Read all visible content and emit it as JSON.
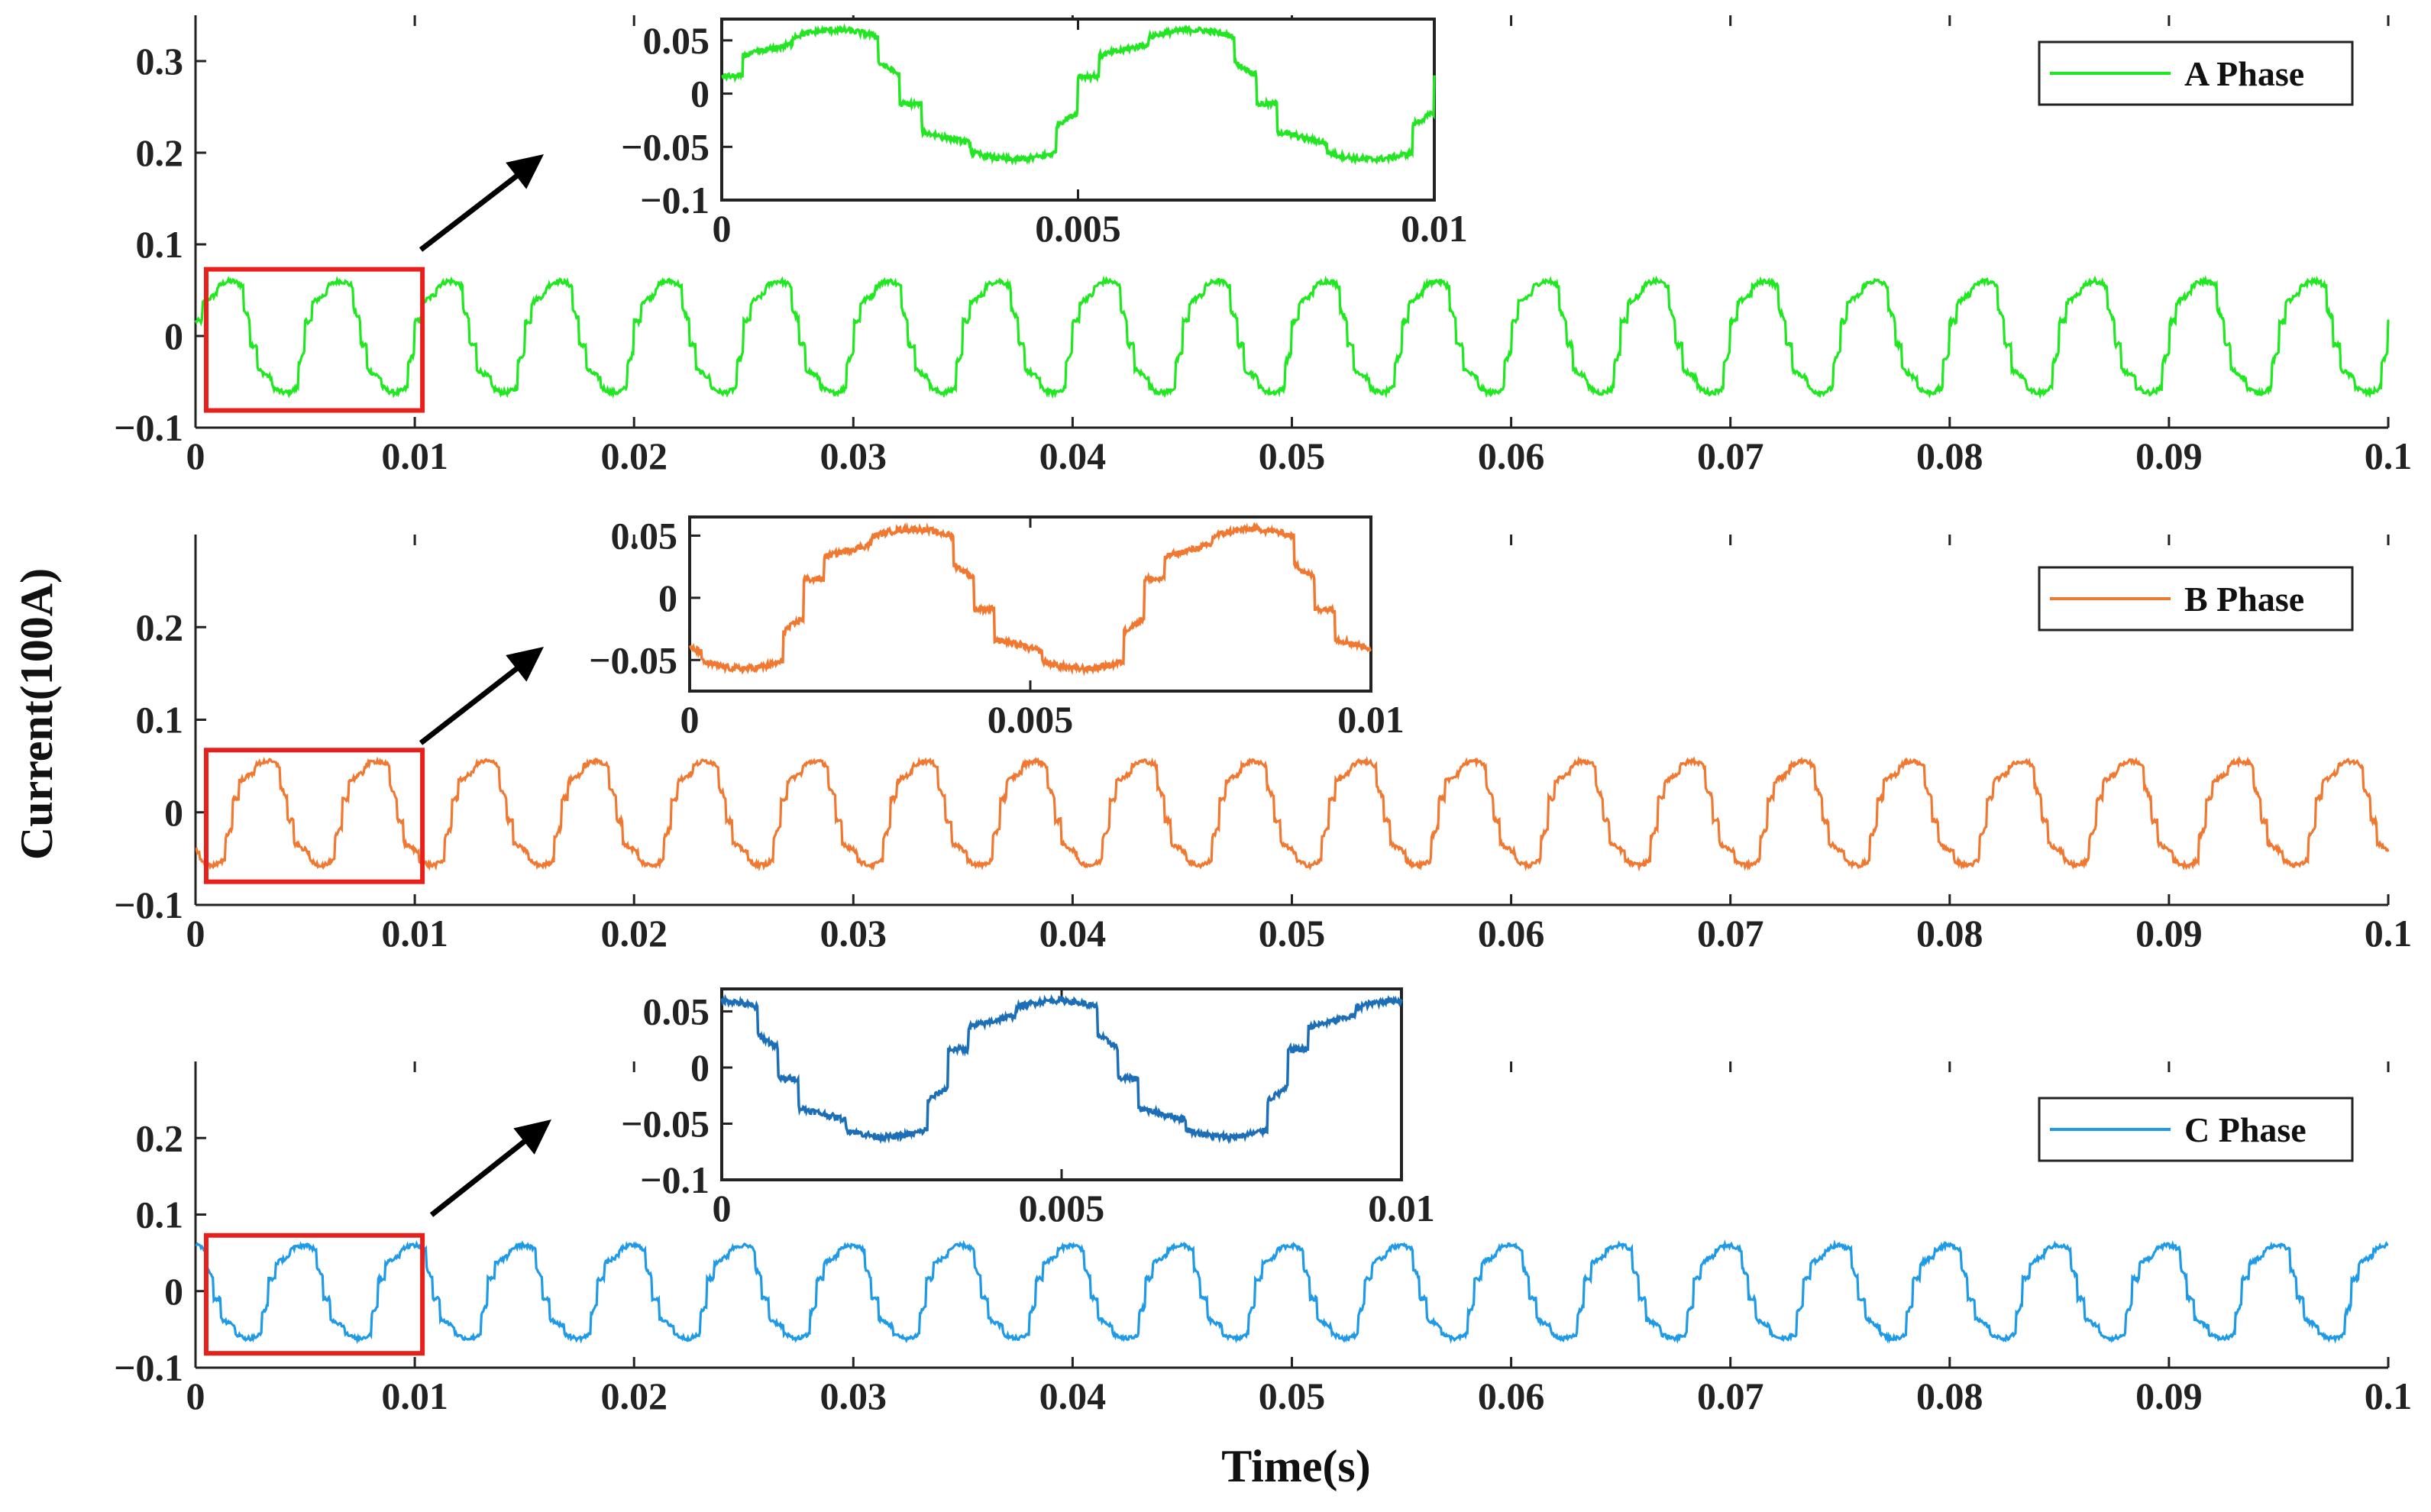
{
  "figure": {
    "ylabel": "Current(100A)",
    "xlabel": "Time(s)"
  },
  "chart_data": [
    {
      "type": "line",
      "name": "a-phase",
      "legend": "A Phase",
      "legend_position": "top-right",
      "color": "#1ee81e",
      "xlim": [
        0,
        0.1
      ],
      "ylim": [
        -0.1,
        0.35
      ],
      "xticks": [
        0,
        0.01,
        0.02,
        0.03,
        0.04,
        0.05,
        0.06,
        0.07,
        0.08,
        0.09,
        0.1
      ],
      "xtick_labels": [
        "0",
        "0.01",
        "0.02",
        "0.03",
        "0.04",
        "0.05",
        "0.06",
        "0.07",
        "0.08",
        "0.09",
        "0.1"
      ],
      "yticks": [
        -0.1,
        0,
        0.1,
        0.2,
        0.3
      ],
      "ytick_labels": [
        "−0.1",
        "0",
        "0.1",
        "0.2",
        "0.3"
      ],
      "period": 0.005,
      "phase_shift": 0.0,
      "amplitude": 0.065,
      "zoom_window": [
        0,
        0.01
      ],
      "inset": {
        "color": "#22e622",
        "xlim": [
          0,
          0.01
        ],
        "ylim": [
          -0.1,
          0.07
        ],
        "xticks": [
          0,
          0.005,
          0.01
        ],
        "xtick_labels": [
          "0",
          "0.005",
          "0.01"
        ],
        "yticks": [
          -0.1,
          -0.05,
          0,
          0.05
        ],
        "ytick_labels": [
          "−0.1",
          "−0.05",
          "0",
          "0.05"
        ]
      }
    },
    {
      "type": "line",
      "name": "b-phase",
      "legend": "B Phase",
      "legend_position": "top-right",
      "color": "#f07830",
      "xlim": [
        0,
        0.1
      ],
      "ylim": [
        -0.1,
        0.3
      ],
      "xticks": [
        0,
        0.01,
        0.02,
        0.03,
        0.04,
        0.05,
        0.06,
        0.07,
        0.08,
        0.09,
        0.1
      ],
      "xtick_labels": [
        "0",
        "0.01",
        "0.02",
        "0.03",
        "0.04",
        "0.05",
        "0.06",
        "0.07",
        "0.08",
        "0.09",
        "0.1"
      ],
      "yticks": [
        -0.1,
        0,
        0.1,
        0.2
      ],
      "ytick_labels": [
        "−0.1",
        "0",
        "0.1",
        "0.2"
      ],
      "period": 0.005,
      "phase_shift": 0.00333,
      "amplitude": 0.06,
      "zoom_window": [
        0,
        0.01
      ],
      "inset": {
        "color": "#f07830",
        "xlim": [
          0,
          0.01
        ],
        "ylim": [
          -0.075,
          0.065
        ],
        "xticks": [
          0,
          0.005,
          0.01
        ],
        "xtick_labels": [
          "0",
          "0.005",
          "0.01"
        ],
        "yticks": [
          -0.05,
          0,
          0.05
        ],
        "ytick_labels": [
          "−0.05",
          "0",
          "0.05"
        ]
      }
    },
    {
      "type": "line",
      "name": "c-phase",
      "legend": "C Phase",
      "legend_position": "top-right",
      "color": "#1e9ae6",
      "xlim": [
        0,
        0.1
      ],
      "ylim": [
        -0.1,
        0.3
      ],
      "xticks": [
        0,
        0.01,
        0.02,
        0.03,
        0.04,
        0.05,
        0.06,
        0.07,
        0.08,
        0.09,
        0.1
      ],
      "xtick_labels": [
        "0",
        "0.01",
        "0.02",
        "0.03",
        "0.04",
        "0.05",
        "0.06",
        "0.07",
        "0.08",
        "0.09",
        "0.1"
      ],
      "yticks": [
        -0.1,
        0,
        0.1,
        0.2
      ],
      "ytick_labels": [
        "−0.1",
        "0",
        "0.1",
        "0.2"
      ],
      "period": 0.005,
      "phase_shift": 0.00167,
      "amplitude": 0.065,
      "zoom_window": [
        0,
        0.01
      ],
      "inset": {
        "color": "#1c6fb6",
        "xlim": [
          0,
          0.01
        ],
        "ylim": [
          -0.1,
          0.07
        ],
        "xticks": [
          0,
          0.005,
          0.01
        ],
        "xtick_labels": [
          "0",
          "0.005",
          "0.01"
        ],
        "yticks": [
          -0.1,
          -0.05,
          0,
          0.05
        ],
        "ytick_labels": [
          "−0.1",
          "−0.05",
          "0",
          "0.05"
        ]
      }
    }
  ]
}
